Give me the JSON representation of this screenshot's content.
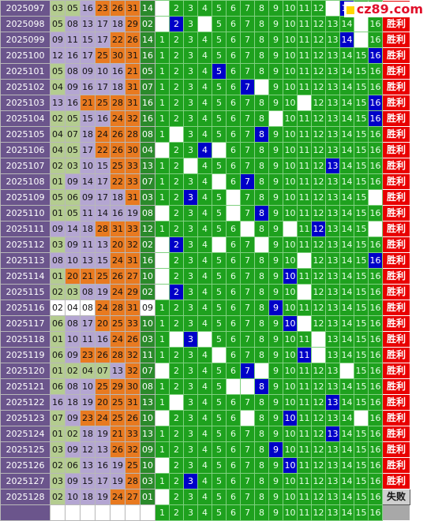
{
  "logo": "cz89.com",
  "result_win": "胜利",
  "result_lose": "失败",
  "rows": [
    {
      "issue": "2025097",
      "n": [
        "03",
        "05",
        "16",
        "23",
        "26",
        "31",
        "14"
      ],
      "hit": 14,
      "res": "win"
    },
    {
      "issue": "2025098",
      "n": [
        "05",
        "08",
        "13",
        "17",
        "18",
        "29",
        "02"
      ],
      "hit": 2,
      "res": "win"
    },
    {
      "issue": "2025099",
      "n": [
        "09",
        "11",
        "15",
        "17",
        "22",
        "26",
        "14"
      ],
      "hit": 14,
      "res": "win"
    },
    {
      "issue": "2025100",
      "n": [
        "12",
        "16",
        "17",
        "25",
        "30",
        "31",
        "16"
      ],
      "hit": 16,
      "res": "win"
    },
    {
      "issue": "2025101",
      "n": [
        "05",
        "08",
        "09",
        "10",
        "16",
        "21",
        "05"
      ],
      "hit": 5,
      "res": "win"
    },
    {
      "issue": "2025102",
      "n": [
        "04",
        "09",
        "16",
        "17",
        "18",
        "31",
        "07"
      ],
      "hit": 7,
      "res": "win"
    },
    {
      "issue": "2025103",
      "n": [
        "13",
        "16",
        "21",
        "25",
        "28",
        "31",
        "16"
      ],
      "hit": 16,
      "res": "win"
    },
    {
      "issue": "2025104",
      "n": [
        "02",
        "05",
        "15",
        "16",
        "24",
        "32",
        "16"
      ],
      "hit": 16,
      "res": "win"
    },
    {
      "issue": "2025105",
      "n": [
        "04",
        "07",
        "18",
        "24",
        "26",
        "28",
        "08"
      ],
      "hit": 8,
      "res": "win"
    },
    {
      "issue": "2025106",
      "n": [
        "04",
        "05",
        "17",
        "22",
        "26",
        "30",
        "04"
      ],
      "hit": 4,
      "res": "win"
    },
    {
      "issue": "2025107",
      "n": [
        "02",
        "03",
        "10",
        "15",
        "25",
        "33",
        "13"
      ],
      "hit": 13,
      "res": "win"
    },
    {
      "issue": "2025108",
      "n": [
        "01",
        "09",
        "14",
        "17",
        "22",
        "33",
        "07"
      ],
      "hit": 7,
      "res": "win"
    },
    {
      "issue": "2025109",
      "n": [
        "05",
        "06",
        "09",
        "17",
        "18",
        "31",
        "03"
      ],
      "hit": 3,
      "res": "win"
    },
    {
      "issue": "2025110",
      "n": [
        "01",
        "05",
        "11",
        "14",
        "16",
        "19",
        "08"
      ],
      "hit": 8,
      "res": "win"
    },
    {
      "issue": "2025111",
      "n": [
        "09",
        "14",
        "18",
        "28",
        "31",
        "33",
        "12"
      ],
      "hit": 12,
      "res": "win"
    },
    {
      "issue": "2025112",
      "n": [
        "03",
        "09",
        "11",
        "13",
        "20",
        "32",
        "02"
      ],
      "hit": 2,
      "res": "win"
    },
    {
      "issue": "2025113",
      "n": [
        "08",
        "10",
        "13",
        "15",
        "24",
        "31",
        "16"
      ],
      "hit": 16,
      "res": "win"
    },
    {
      "issue": "2025114",
      "n": [
        "01",
        "20",
        "21",
        "25",
        "26",
        "27",
        "10"
      ],
      "hit": 10,
      "res": "win"
    },
    {
      "issue": "2025115",
      "n": [
        "02",
        "03",
        "08",
        "19",
        "24",
        "29",
        "02"
      ],
      "hit": 2,
      "res": "win"
    },
    {
      "issue": "2025116",
      "n": [
        "02",
        "04",
        "08",
        "24",
        "28",
        "31",
        "09"
      ],
      "hit": 9,
      "res": "win"
    },
    {
      "issue": "2025117",
      "n": [
        "06",
        "08",
        "17",
        "20",
        "25",
        "33",
        "10"
      ],
      "hit": 10,
      "res": "win"
    },
    {
      "issue": "2025118",
      "n": [
        "01",
        "10",
        "11",
        "16",
        "24",
        "26",
        "03"
      ],
      "hit": 3,
      "res": "win"
    },
    {
      "issue": "2025119",
      "n": [
        "06",
        "09",
        "23",
        "26",
        "28",
        "32",
        "11"
      ],
      "hit": 11,
      "res": "win"
    },
    {
      "issue": "2025120",
      "n": [
        "01",
        "02",
        "04",
        "07",
        "13",
        "32",
        "07"
      ],
      "hit": 7,
      "res": "win"
    },
    {
      "issue": "2025121",
      "n": [
        "06",
        "08",
        "10",
        "25",
        "29",
        "30",
        "08"
      ],
      "hit": 8,
      "res": "win"
    },
    {
      "issue": "2025122",
      "n": [
        "16",
        "18",
        "19",
        "20",
        "25",
        "31",
        "13"
      ],
      "hit": 13,
      "res": "win"
    },
    {
      "issue": "2025123",
      "n": [
        "07",
        "09",
        "23",
        "24",
        "25",
        "26",
        "10"
      ],
      "hit": 10,
      "res": "win"
    },
    {
      "issue": "2025124",
      "n": [
        "01",
        "02",
        "18",
        "19",
        "21",
        "33",
        "13"
      ],
      "hit": 13,
      "res": "win"
    },
    {
      "issue": "2025125",
      "n": [
        "03",
        "09",
        "12",
        "13",
        "26",
        "32",
        "09"
      ],
      "hit": 9,
      "res": "win"
    },
    {
      "issue": "2025126",
      "n": [
        "02",
        "06",
        "13",
        "16",
        "19",
        "25",
        "10"
      ],
      "hit": 10,
      "res": "win"
    },
    {
      "issue": "2025127",
      "n": [
        "03",
        "09",
        "15",
        "17",
        "19",
        "28",
        "03"
      ],
      "hit": 3,
      "res": "win"
    },
    {
      "issue": "2025128",
      "n": [
        "02",
        "10",
        "18",
        "19",
        "24",
        "27",
        "01"
      ],
      "hit": null,
      "res": "lose"
    }
  ],
  "gaps": {
    "2025097": [
      1,
      13
    ],
    "2025098": [
      1,
      4,
      15
    ],
    "2025099": [
      15
    ],
    "2025101": [
      5
    ],
    "2025102": [
      8
    ],
    "2025103": [
      11
    ],
    "2025104": [
      9
    ],
    "2025105": [
      2
    ],
    "2025106": [
      1,
      5
    ],
    "2025107": [
      3
    ],
    "2025108": [
      5
    ],
    "2025109": [
      6,
      16
    ],
    "2025110": [
      1,
      6
    ],
    "2025111": [
      7,
      10,
      16
    ],
    "2025112": [
      1,
      5,
      8
    ],
    "2025113": [
      1,
      11
    ],
    "2025114": [
      1
    ],
    "2025115": [
      1,
      11
    ],
    "2025116": [],
    "2025117": [
      11
    ],
    "2025118": [
      2,
      4,
      12
    ],
    "2025119": [
      5,
      12
    ],
    "2025120": [
      1,
      8,
      14
    ],
    "2025121": [
      6,
      7
    ],
    "2025122": [
      2
    ],
    "2025123": [
      1,
      7,
      15
    ],
    "2025124": [],
    "2025125": [],
    "2025126": [
      1
    ],
    "2025127": [],
    "2025128": [
      1
    ]
  },
  "positions": [
    "1",
    "2",
    "3",
    "4",
    "5",
    "6",
    "7",
    "8",
    "9",
    "10",
    "11",
    "12",
    "13",
    "14",
    "15",
    "16"
  ]
}
